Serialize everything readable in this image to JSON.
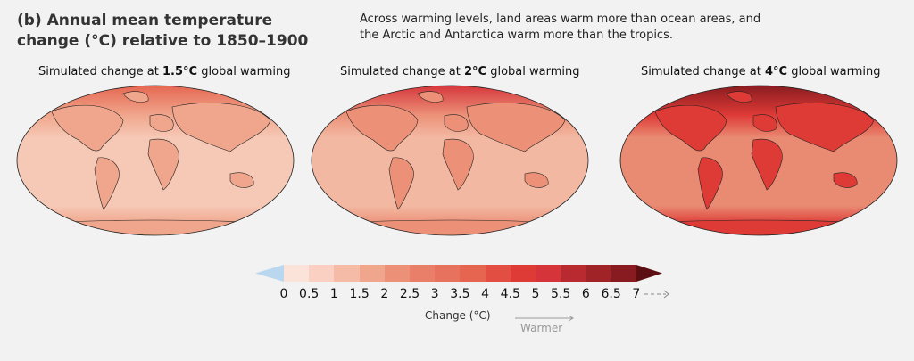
{
  "title": "(b) Annual mean temperature change (°C) relative to 1850–1900",
  "subtitle": "Across warming levels, land areas warm more than ocean areas, and the Arctic and Antarctica warm more than the tropics.",
  "panels": [
    {
      "prefix": "Simulated change at ",
      "level": "1.5°C",
      "suffix": " global warming",
      "ocean": "#f6c8b6",
      "land": "#f0a68c",
      "pole": "#e56550"
    },
    {
      "prefix": "Simulated change at ",
      "level": "2°C",
      "suffix": " global warming",
      "ocean": "#f3b8a2",
      "land": "#ec9178",
      "pole": "#d5343a"
    },
    {
      "prefix": "Simulated change at ",
      "level": "4°C",
      "suffix": " global warming",
      "ocean": "#e98a72",
      "land": "#de3a36",
      "pole": "#871b1f"
    }
  ],
  "colorbar": {
    "ticks": [
      "0",
      "0.5",
      "1",
      "1.5",
      "2",
      "2.5",
      "3",
      "3.5",
      "4",
      "4.5",
      "5",
      "5.5",
      "6",
      "6.5",
      "7"
    ],
    "colors": [
      "#fbe3da",
      "#f9d0c2",
      "#f5bba6",
      "#f0a68c",
      "#ec9178",
      "#e97f68",
      "#e7725d",
      "#e56550",
      "#e24e42",
      "#de3a36",
      "#d5343a",
      "#b82a2f",
      "#a02427",
      "#871b1f"
    ],
    "low_color": "#b9d7ee",
    "high_color": "#5c0f12",
    "label": "Change (°C)",
    "direction": "Warmer"
  }
}
